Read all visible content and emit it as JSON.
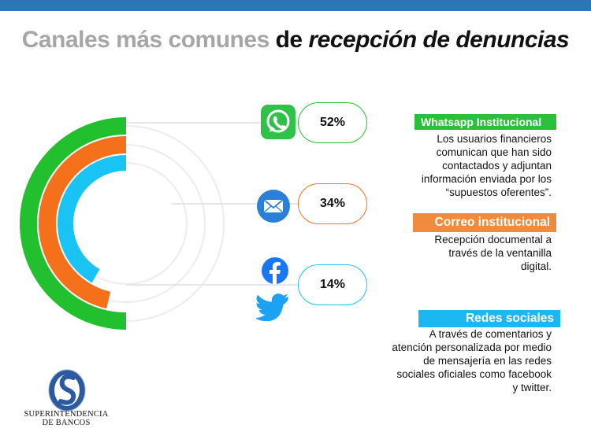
{
  "title": {
    "part1": "Canales más comunes",
    "part2": "de",
    "part3": "recepción de denuncias"
  },
  "colors": {
    "whatsapp": "#22c02e",
    "correo": "#f4701a",
    "redes": "#19c3f3",
    "banner_whatsapp": "#28c03c",
    "banner_correo": "#f08a3c",
    "banner_redes": "#1bb8ef",
    "top_bar": "#2e75b6"
  },
  "icons": [
    "whatsapp-icon",
    "email-icon",
    "facebook-icon",
    "twitter-icon"
  ],
  "chart_data": {
    "type": "radial-bar",
    "categories": [
      "Whatsapp Institucional",
      "Correo institucional",
      "Redes sociales"
    ],
    "values": [
      52,
      34,
      14
    ],
    "value_labels": [
      "52%",
      "34%",
      "14%"
    ],
    "unit": "%"
  },
  "channels": [
    {
      "name": "Whatsapp Institucional",
      "percent_label": "52%",
      "description": [
        "Los usuarios financieros",
        "comunican que han sido",
        "contactados y adjuntan",
        "información enviada por los",
        "“supuestos oferentes”."
      ]
    },
    {
      "name": "Correo institucional",
      "percent_label": "34%",
      "description": [
        "Recepción documental a",
        "través de la ventanilla",
        "digital."
      ]
    },
    {
      "name": "Redes sociales",
      "percent_label": "14%",
      "description": [
        "A través de comentarios y",
        "atención personalizada por medio",
        "de mensajería en las redes",
        "sociales oficiales como facebook",
        "y twitter."
      ]
    }
  ],
  "logo": {
    "line1": "SUPERINTENDENCIA",
    "line2": "DE BANCOS"
  }
}
